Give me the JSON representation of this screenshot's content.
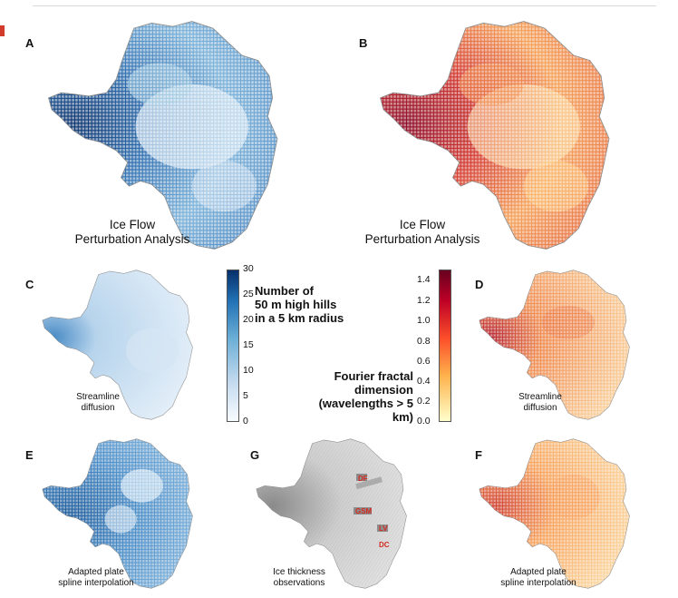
{
  "panels": {
    "A": {
      "letter": "A",
      "caption": [
        "Ice Flow",
        "Perturbation Analysis"
      ]
    },
    "B": {
      "letter": "B",
      "caption": [
        "Ice Flow",
        "Perturbation Analysis"
      ]
    },
    "C": {
      "letter": "C",
      "caption": [
        "Streamline",
        "diffusion"
      ]
    },
    "D": {
      "letter": "D",
      "caption": [
        "Streamline",
        "diffusion"
      ]
    },
    "E": {
      "letter": "E",
      "caption": [
        "Adapted plate",
        "spline interpolation"
      ]
    },
    "G": {
      "letter": "G",
      "caption": [
        "Ice thickness",
        "observations"
      ]
    },
    "F": {
      "letter": "F",
      "caption": [
        "Adapted plate",
        "spline interpolation"
      ]
    }
  },
  "colorbar_hills": {
    "title": [
      "Number of",
      "50 m high hills",
      "in a 5 km radius"
    ],
    "ticks": [
      "30",
      "25",
      "20",
      "15",
      "10",
      "5",
      "0"
    ],
    "colors": [
      "#f7fbff",
      "#c6dbef",
      "#6baed6",
      "#2171b5",
      "#08306b"
    ]
  },
  "colorbar_fractal": {
    "title": [
      "Fourier fractal",
      "dimension",
      "(wavelengths > 5 km)"
    ],
    "ticks": [
      "1.4",
      "1.2",
      "1.0",
      "0.8",
      "0.6",
      "0.4",
      "0.2",
      "0.0"
    ],
    "colors": [
      "#ffffcc",
      "#feb24c",
      "#fc4e2a",
      "#bd0026",
      "#67001f"
    ]
  },
  "site_labels": [
    "DF",
    "GSM",
    "LV",
    "DC"
  ]
}
